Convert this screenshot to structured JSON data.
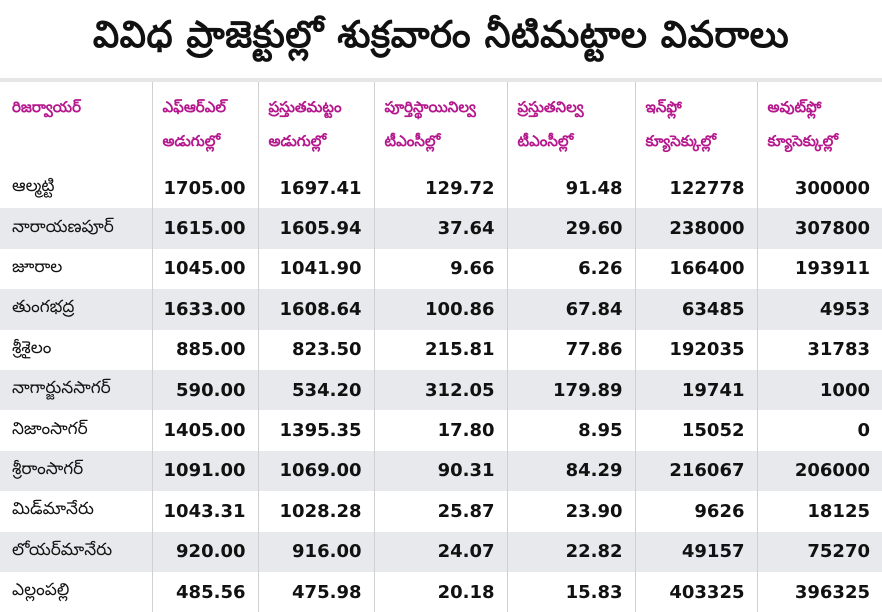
{
  "title": "వివిధ ప్రాజెక్టుల్లో శుక్రవారం నీటిమట్టాల వివరాలు",
  "columns": [
    {
      "line1": "రిజర్వాయర్",
      "line2": ""
    },
    {
      "line1": "ఎఫ్‌ఆర్‌ఎల్",
      "line2": "అడుగుల్లో"
    },
    {
      "line1": "ప్రస్తుతమట్టం",
      "line2": "అడుగుల్లో"
    },
    {
      "line1": "పూర్తిస్థాయినిల్వ",
      "line2": "టీఎంసీల్లో"
    },
    {
      "line1": "ప్రస్తుతనిల్వ",
      "line2": "టీఎంసీల్లో"
    },
    {
      "line1": "ఇన్‌ఫ్లో",
      "line2": "క్యూసెక్కుల్లో"
    },
    {
      "line1": "అవుట్‌ఫ్లో",
      "line2": "క్యూసెక్కుల్లో"
    }
  ],
  "rows": [
    [
      "ఆల్మట్టి",
      "1705.00",
      "1697.41",
      "129.72",
      "91.48",
      "122778",
      "300000"
    ],
    [
      "నారాయణపూర్",
      "1615.00",
      "1605.94",
      "37.64",
      "29.60",
      "238000",
      "307800"
    ],
    [
      "జూరాల",
      "1045.00",
      "1041.90",
      "9.66",
      "6.26",
      "166400",
      "193911"
    ],
    [
      "తుంగభద్ర",
      "1633.00",
      "1608.64",
      "100.86",
      "67.84",
      "63485",
      "4953"
    ],
    [
      "శ్రీశైలం",
      "885.00",
      "823.50",
      "215.81",
      "77.86",
      "192035",
      "31783"
    ],
    [
      "నాగార్జునసాగర్",
      "590.00",
      "534.20",
      "312.05",
      "179.89",
      "19741",
      "1000"
    ],
    [
      "నిజాంసాగర్",
      "1405.00",
      "1395.35",
      "17.80",
      "8.95",
      "15052",
      "0"
    ],
    [
      "శ్రీరాంసాగర్",
      "1091.00",
      "1069.00",
      "90.31",
      "84.29",
      "216067",
      "206000"
    ],
    [
      "మిడ్‌మానేరు",
      "1043.31",
      "1028.28",
      "25.87",
      "23.90",
      "9626",
      "18125"
    ],
    [
      "లోయర్‌మానేరు",
      "920.00",
      "916.00",
      "24.07",
      "22.82",
      "49157",
      "75270"
    ],
    [
      "ఎల్లంపల్లి",
      "485.56",
      "475.98",
      "20.18",
      "15.83",
      "403325",
      "396325"
    ]
  ],
  "colors": {
    "header_text": "#b5178c",
    "stripe": "#e8e9ec"
  }
}
